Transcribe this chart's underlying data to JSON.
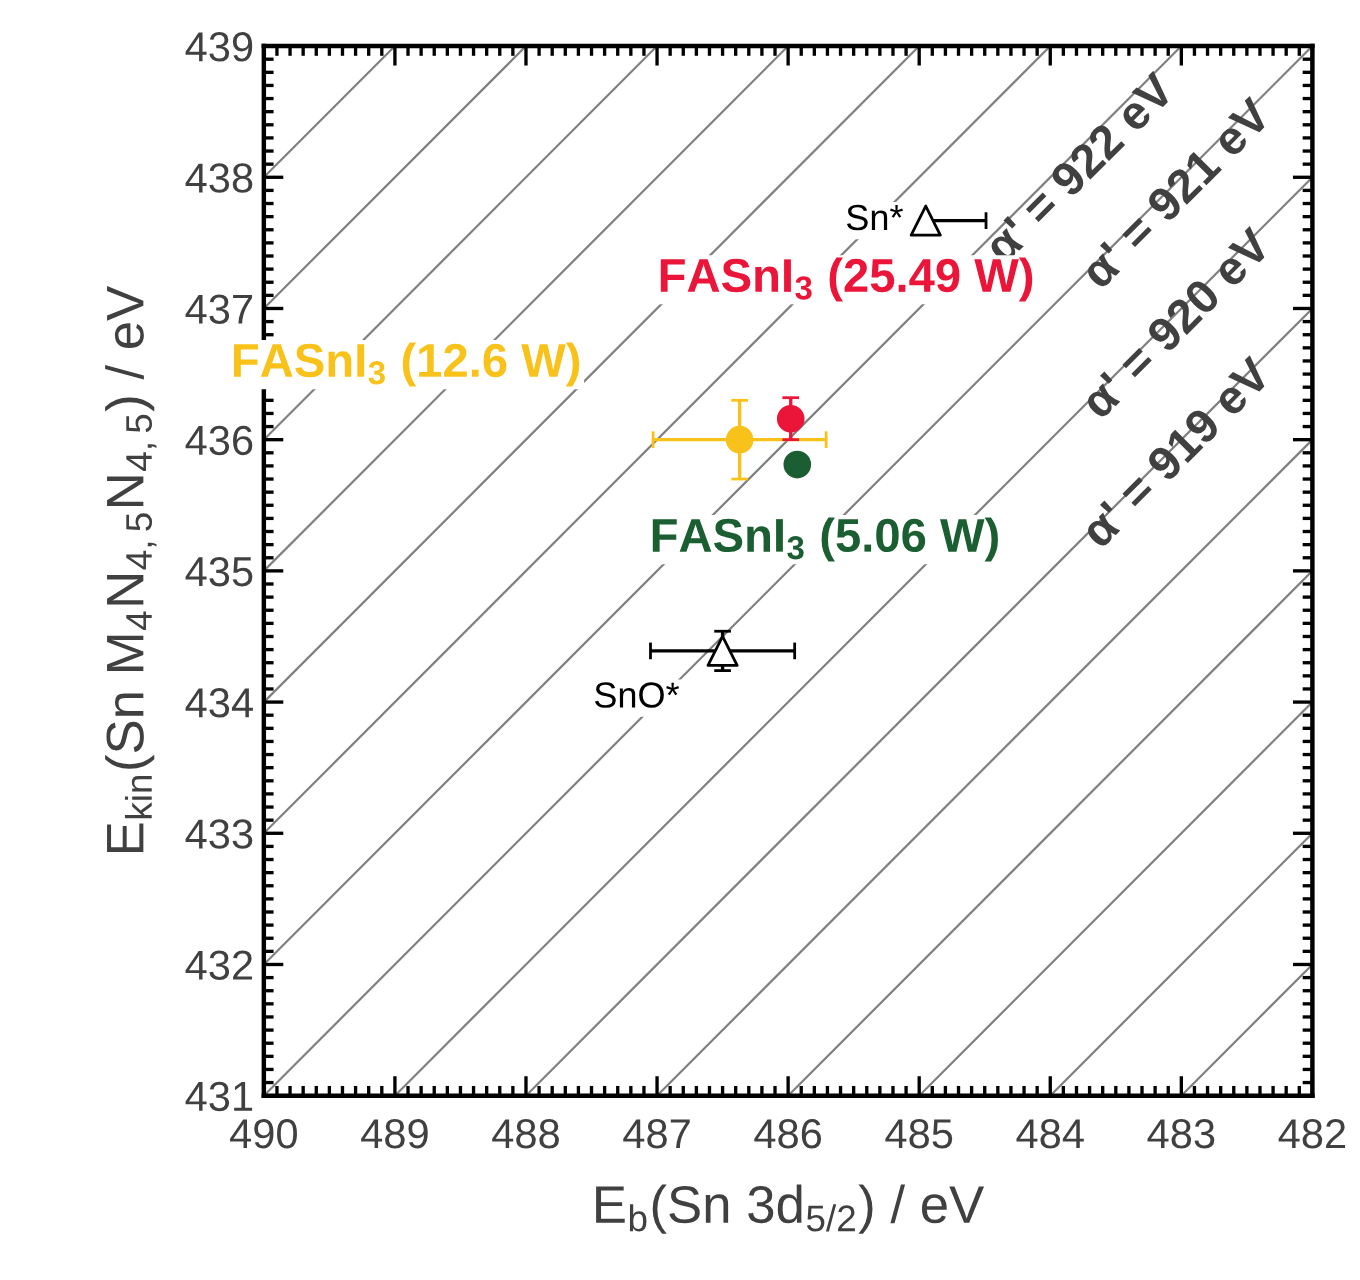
{
  "chart_data": {
    "type": "scatter",
    "xlabel": "E$_{b}$(Sn 3d$_{5/2}$) / eV",
    "ylabel": "E$_{kin}$(Sn M$_{4}$N$_{4,5}$N$_{4,5}$) / eV",
    "xlim": [
      490,
      482
    ],
    "xticks": [
      490,
      489,
      488,
      487,
      486,
      485,
      484,
      483,
      482
    ],
    "ylim": [
      431,
      439
    ],
    "yticks": [
      431,
      432,
      433,
      434,
      435,
      436,
      437,
      438,
      439
    ],
    "grid": false,
    "legend": "top left",
    "series": [
      {
        "type": "line",
        "color": "#808080",
        "x": [
          483,
          482
        ],
        "values": [
          431,
          432
        ]
      },
      {
        "type": "line",
        "color": "#808080",
        "x": [
          484,
          482
        ],
        "values": [
          431,
          433
        ]
      },
      {
        "type": "line",
        "color": "#808080",
        "x": [
          485,
          482
        ],
        "values": [
          431,
          434
        ]
      },
      {
        "type": "line",
        "color": "#808080",
        "x": [
          486,
          482
        ],
        "values": [
          431,
          435
        ]
      },
      {
        "type": "line",
        "color": "#808080",
        "x": [
          487,
          482
        ],
        "values": [
          431,
          436
        ]
      },
      {
        "type": "line",
        "color": "#808080",
        "x": [
          488,
          482
        ],
        "values": [
          431,
          437
        ]
      },
      {
        "type": "line",
        "color": "#808080",
        "x": [
          489,
          482
        ],
        "values": [
          431,
          438
        ]
      },
      {
        "type": "line",
        "color": "#808080",
        "x": [
          490,
          482
        ],
        "values": [
          431,
          439
        ]
      },
      {
        "type": "line",
        "color": "#808080",
        "x": [
          490,
          483
        ],
        "values": [
          432,
          439
        ]
      },
      {
        "type": "line",
        "color": "#808080",
        "x": [
          490,
          484
        ],
        "values": [
          433,
          439
        ]
      },
      {
        "type": "line",
        "color": "#808080",
        "x": [
          490,
          485
        ],
        "values": [
          434,
          439
        ]
      },
      {
        "type": "line",
        "color": "#808080",
        "x": [
          490,
          486
        ],
        "values": [
          435,
          439
        ]
      },
      {
        "type": "line",
        "color": "#808080",
        "x": [
          490,
          487
        ],
        "values": [
          436,
          439
        ]
      },
      {
        "type": "line",
        "color": "#808080",
        "x": [
          490,
          488
        ],
        "values": [
          437,
          439
        ]
      },
      {
        "type": "line",
        "color": "#808080",
        "x": [
          490,
          489
        ],
        "values": [
          438,
          439
        ]
      },
      {
        "name": "FASnI$_{3}$ (12.6 W)",
        "color": "#f9c21b",
        "marker": "circle",
        "x": [
          486.37
        ],
        "values": [
          436.0
        ],
        "errors": [
          0.3
        ],
        "xerrors": [
          0.66
        ]
      },
      {
        "name": "FASnI$_{3}$ (25.49 W)",
        "color": "#ea1538",
        "marker": "circle",
        "x": [
          485.98
        ],
        "values": [
          436.16
        ],
        "errors": [
          0.16
        ]
      },
      {
        "name": "FASnI$_{3}$ (5.06 W)",
        "color": "#1b5e31",
        "marker": "circle",
        "x": [
          485.93
        ],
        "values": [
          435.81
        ]
      },
      {
        "name": "Sn*",
        "color": "#000000",
        "marker": "triangle",
        "x": [
          484.95
        ],
        "values": [
          437.67
        ],
        "xerrors": [
          [
            484.49,
            484.95
          ]
        ]
      },
      {
        "name": "SnO*",
        "color": "#000000",
        "marker": "triangle",
        "x": [
          486.5
        ],
        "values": [
          434.39
        ],
        "errors": [
          0.15
        ],
        "xerrors": [
          0.55
        ]
      }
    ],
    "annotations": [
      "α' = 922 eV",
      "α' = 921 eV",
      "α' = 920 eV",
      "α' = 919 eV"
    ]
  }
}
